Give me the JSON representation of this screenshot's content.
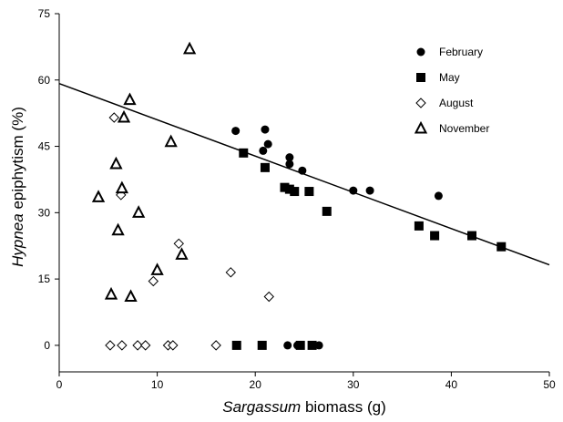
{
  "chart_data": {
    "type": "scatter",
    "title": "",
    "xlabel_italic": "Sargassum",
    "xlabel_rest": " biomass (g)",
    "ylabel_italic": "Hypnea",
    "ylabel_rest": " epiphytism (%)",
    "xlim": [
      0,
      50
    ],
    "ylim": [
      -6,
      75
    ],
    "x_ticks": [
      0,
      10,
      20,
      30,
      40,
      50
    ],
    "y_ticks": [
      0,
      15,
      30,
      45,
      60,
      75
    ],
    "grid": false,
    "legend_position": "top-right",
    "series": [
      {
        "name": "February",
        "marker": "filled-circle",
        "points": [
          [
            18.0,
            48.5
          ],
          [
            20.8,
            44.0
          ],
          [
            21.0,
            48.8
          ],
          [
            21.3,
            45.5
          ],
          [
            23.5,
            42.5
          ],
          [
            23.5,
            41.0
          ],
          [
            24.8,
            39.5
          ],
          [
            30.0,
            35.0
          ],
          [
            31.7,
            35.0
          ],
          [
            38.7,
            33.8
          ],
          [
            23.3,
            0
          ],
          [
            24.3,
            0
          ],
          [
            26.5,
            0
          ]
        ]
      },
      {
        "name": "May",
        "marker": "filled-square",
        "points": [
          [
            18.8,
            43.5
          ],
          [
            21.0,
            40.2
          ],
          [
            23.0,
            35.7
          ],
          [
            23.5,
            35.3
          ],
          [
            24.0,
            34.8
          ],
          [
            25.5,
            34.8
          ],
          [
            27.3,
            30.3
          ],
          [
            36.7,
            27.0
          ],
          [
            38.3,
            24.8
          ],
          [
            42.1,
            24.8
          ],
          [
            45.1,
            22.3
          ],
          [
            18.1,
            0
          ],
          [
            20.7,
            0
          ],
          [
            24.6,
            0
          ],
          [
            25.8,
            0
          ]
        ]
      },
      {
        "name": "August",
        "marker": "open-diamond",
        "points": [
          [
            5.6,
            51.5
          ],
          [
            6.3,
            34.0
          ],
          [
            12.2,
            23.0
          ],
          [
            9.6,
            14.5
          ],
          [
            17.5,
            16.5
          ],
          [
            21.4,
            11.0
          ],
          [
            5.2,
            0
          ],
          [
            6.4,
            0
          ],
          [
            8.0,
            0
          ],
          [
            8.8,
            0
          ],
          [
            11.1,
            0
          ],
          [
            11.6,
            0
          ],
          [
            16.0,
            0
          ]
        ]
      },
      {
        "name": "November",
        "marker": "open-triangle",
        "points": [
          [
            13.3,
            67.0
          ],
          [
            7.2,
            55.5
          ],
          [
            6.6,
            51.5
          ],
          [
            11.4,
            46.0
          ],
          [
            5.8,
            41.0
          ],
          [
            6.4,
            35.5
          ],
          [
            4.0,
            33.5
          ],
          [
            6.0,
            26.0
          ],
          [
            8.1,
            30.0
          ],
          [
            12.5,
            20.5
          ],
          [
            10.0,
            17.0
          ],
          [
            5.3,
            11.5
          ],
          [
            7.3,
            11.0
          ]
        ]
      }
    ],
    "regression_line": {
      "x": [
        0,
        50
      ],
      "y": [
        59.2,
        18.2
      ]
    }
  }
}
